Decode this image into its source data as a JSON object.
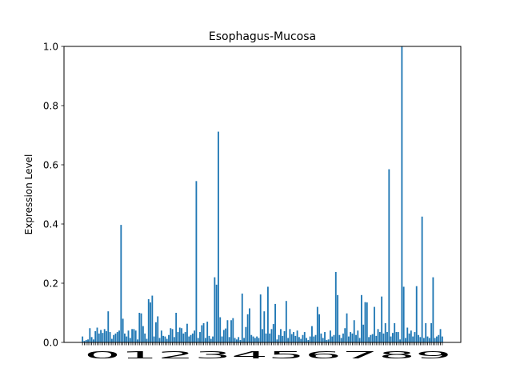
{
  "chart_data": {
    "type": "bar",
    "title": "Esophagus-Mucosa",
    "xlabel": "",
    "ylabel": "Expression Level",
    "ylim": [
      0,
      1.0
    ],
    "yticks": [
      "0.0",
      "0.2",
      "0.4",
      "0.6",
      "0.8",
      "1.0"
    ],
    "xtick_labels_visible": "0123456789",
    "bar_color": "#1f77b4",
    "grid": false,
    "legend": "none",
    "values": [
      0.02,
      0.005,
      0.008,
      0.01,
      0.048,
      0.018,
      0.01,
      0.038,
      0.05,
      0.03,
      0.042,
      0.032,
      0.045,
      0.038,
      0.105,
      0.035,
      0.012,
      0.025,
      0.03,
      0.035,
      0.04,
      0.397,
      0.08,
      0.03,
      0.02,
      0.04,
      0.015,
      0.045,
      0.045,
      0.04,
      0.01,
      0.1,
      0.098,
      0.055,
      0.03,
      0.012,
      0.146,
      0.135,
      0.158,
      0.02,
      0.068,
      0.088,
      0.015,
      0.04,
      0.022,
      0.02,
      0.012,
      0.025,
      0.048,
      0.045,
      0.018,
      0.1,
      0.035,
      0.05,
      0.048,
      0.03,
      0.035,
      0.063,
      0.02,
      0.025,
      0.03,
      0.04,
      0.545,
      0.015,
      0.035,
      0.058,
      0.065,
      0.015,
      0.07,
      0.022,
      0.012,
      0.02,
      0.22,
      0.195,
      0.712,
      0.085,
      0.02,
      0.042,
      0.047,
      0.075,
      0.018,
      0.075,
      0.082,
      0.015,
      0.01,
      0.018,
      0.008,
      0.165,
      0.015,
      0.052,
      0.095,
      0.115,
      0.025,
      0.02,
      0.015,
      0.02,
      0.015,
      0.162,
      0.045,
      0.105,
      0.03,
      0.188,
      0.03,
      0.045,
      0.062,
      0.13,
      0.01,
      0.025,
      0.045,
      0.022,
      0.038,
      0.14,
      0.015,
      0.045,
      0.028,
      0.035,
      0.022,
      0.04,
      0.018,
      0.012,
      0.025,
      0.035,
      0.015,
      0.008,
      0.02,
      0.055,
      0.02,
      0.025,
      0.12,
      0.095,
      0.03,
      0.015,
      0.035,
      0.008,
      0.01,
      0.04,
      0.02,
      0.025,
      0.238,
      0.16,
      0.025,
      0.015,
      0.03,
      0.048,
      0.098,
      0.02,
      0.035,
      0.03,
      0.075,
      0.025,
      0.04,
      0.015,
      0.16,
      0.06,
      0.136,
      0.135,
      0.018,
      0.025,
      0.028,
      0.12,
      0.022,
      0.045,
      0.035,
      0.155,
      0.03,
      0.065,
      0.035,
      0.585,
      0.02,
      0.032,
      0.065,
      0.035,
      0.035,
      0.01,
      1.0,
      0.188,
      0.015,
      0.05,
      0.03,
      0.04,
      0.02,
      0.035,
      0.19,
      0.025,
      0.018,
      0.425,
      0.015,
      0.065,
      0.02,
      0.015,
      0.065,
      0.22,
      0.015,
      0.02,
      0.025,
      0.045,
      0.02
    ]
  }
}
